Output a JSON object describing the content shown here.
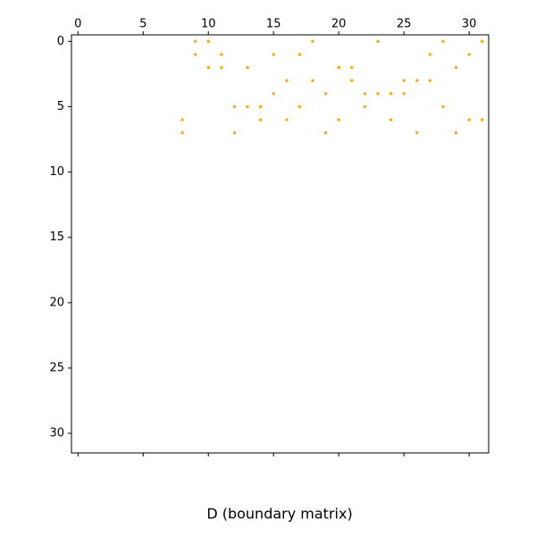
{
  "chart_data": {
    "type": "spy",
    "xlabel": "D (boundary matrix)",
    "color": "orange",
    "xlim": [
      -0.5,
      31.5
    ],
    "ylim": [
      31.5,
      -0.5
    ],
    "xticks": [
      0,
      5,
      10,
      15,
      20,
      25,
      30
    ],
    "yticks": [
      0,
      5,
      10,
      15,
      20,
      25,
      30
    ],
    "x": [
      8,
      8,
      9,
      9,
      10,
      10,
      11,
      11,
      12,
      12,
      13,
      13,
      14,
      14,
      15,
      15,
      16,
      16,
      17,
      17,
      18,
      18,
      19,
      19,
      20,
      20,
      21,
      21,
      22,
      22,
      23,
      23,
      24,
      24,
      25,
      25,
      26,
      26,
      27,
      27,
      28,
      28,
      29,
      29,
      30,
      30,
      31,
      31
    ],
    "y": [
      6,
      7,
      0,
      1,
      0,
      2,
      1,
      2,
      5,
      7,
      2,
      5,
      5,
      6,
      1,
      4,
      3,
      6,
      1,
      5,
      0,
      3,
      4,
      7,
      2,
      6,
      2,
      3,
      4,
      5,
      0,
      4,
      4,
      6,
      3,
      4,
      3,
      7,
      1,
      3,
      0,
      5,
      2,
      7,
      1,
      6,
      0,
      6
    ]
  }
}
